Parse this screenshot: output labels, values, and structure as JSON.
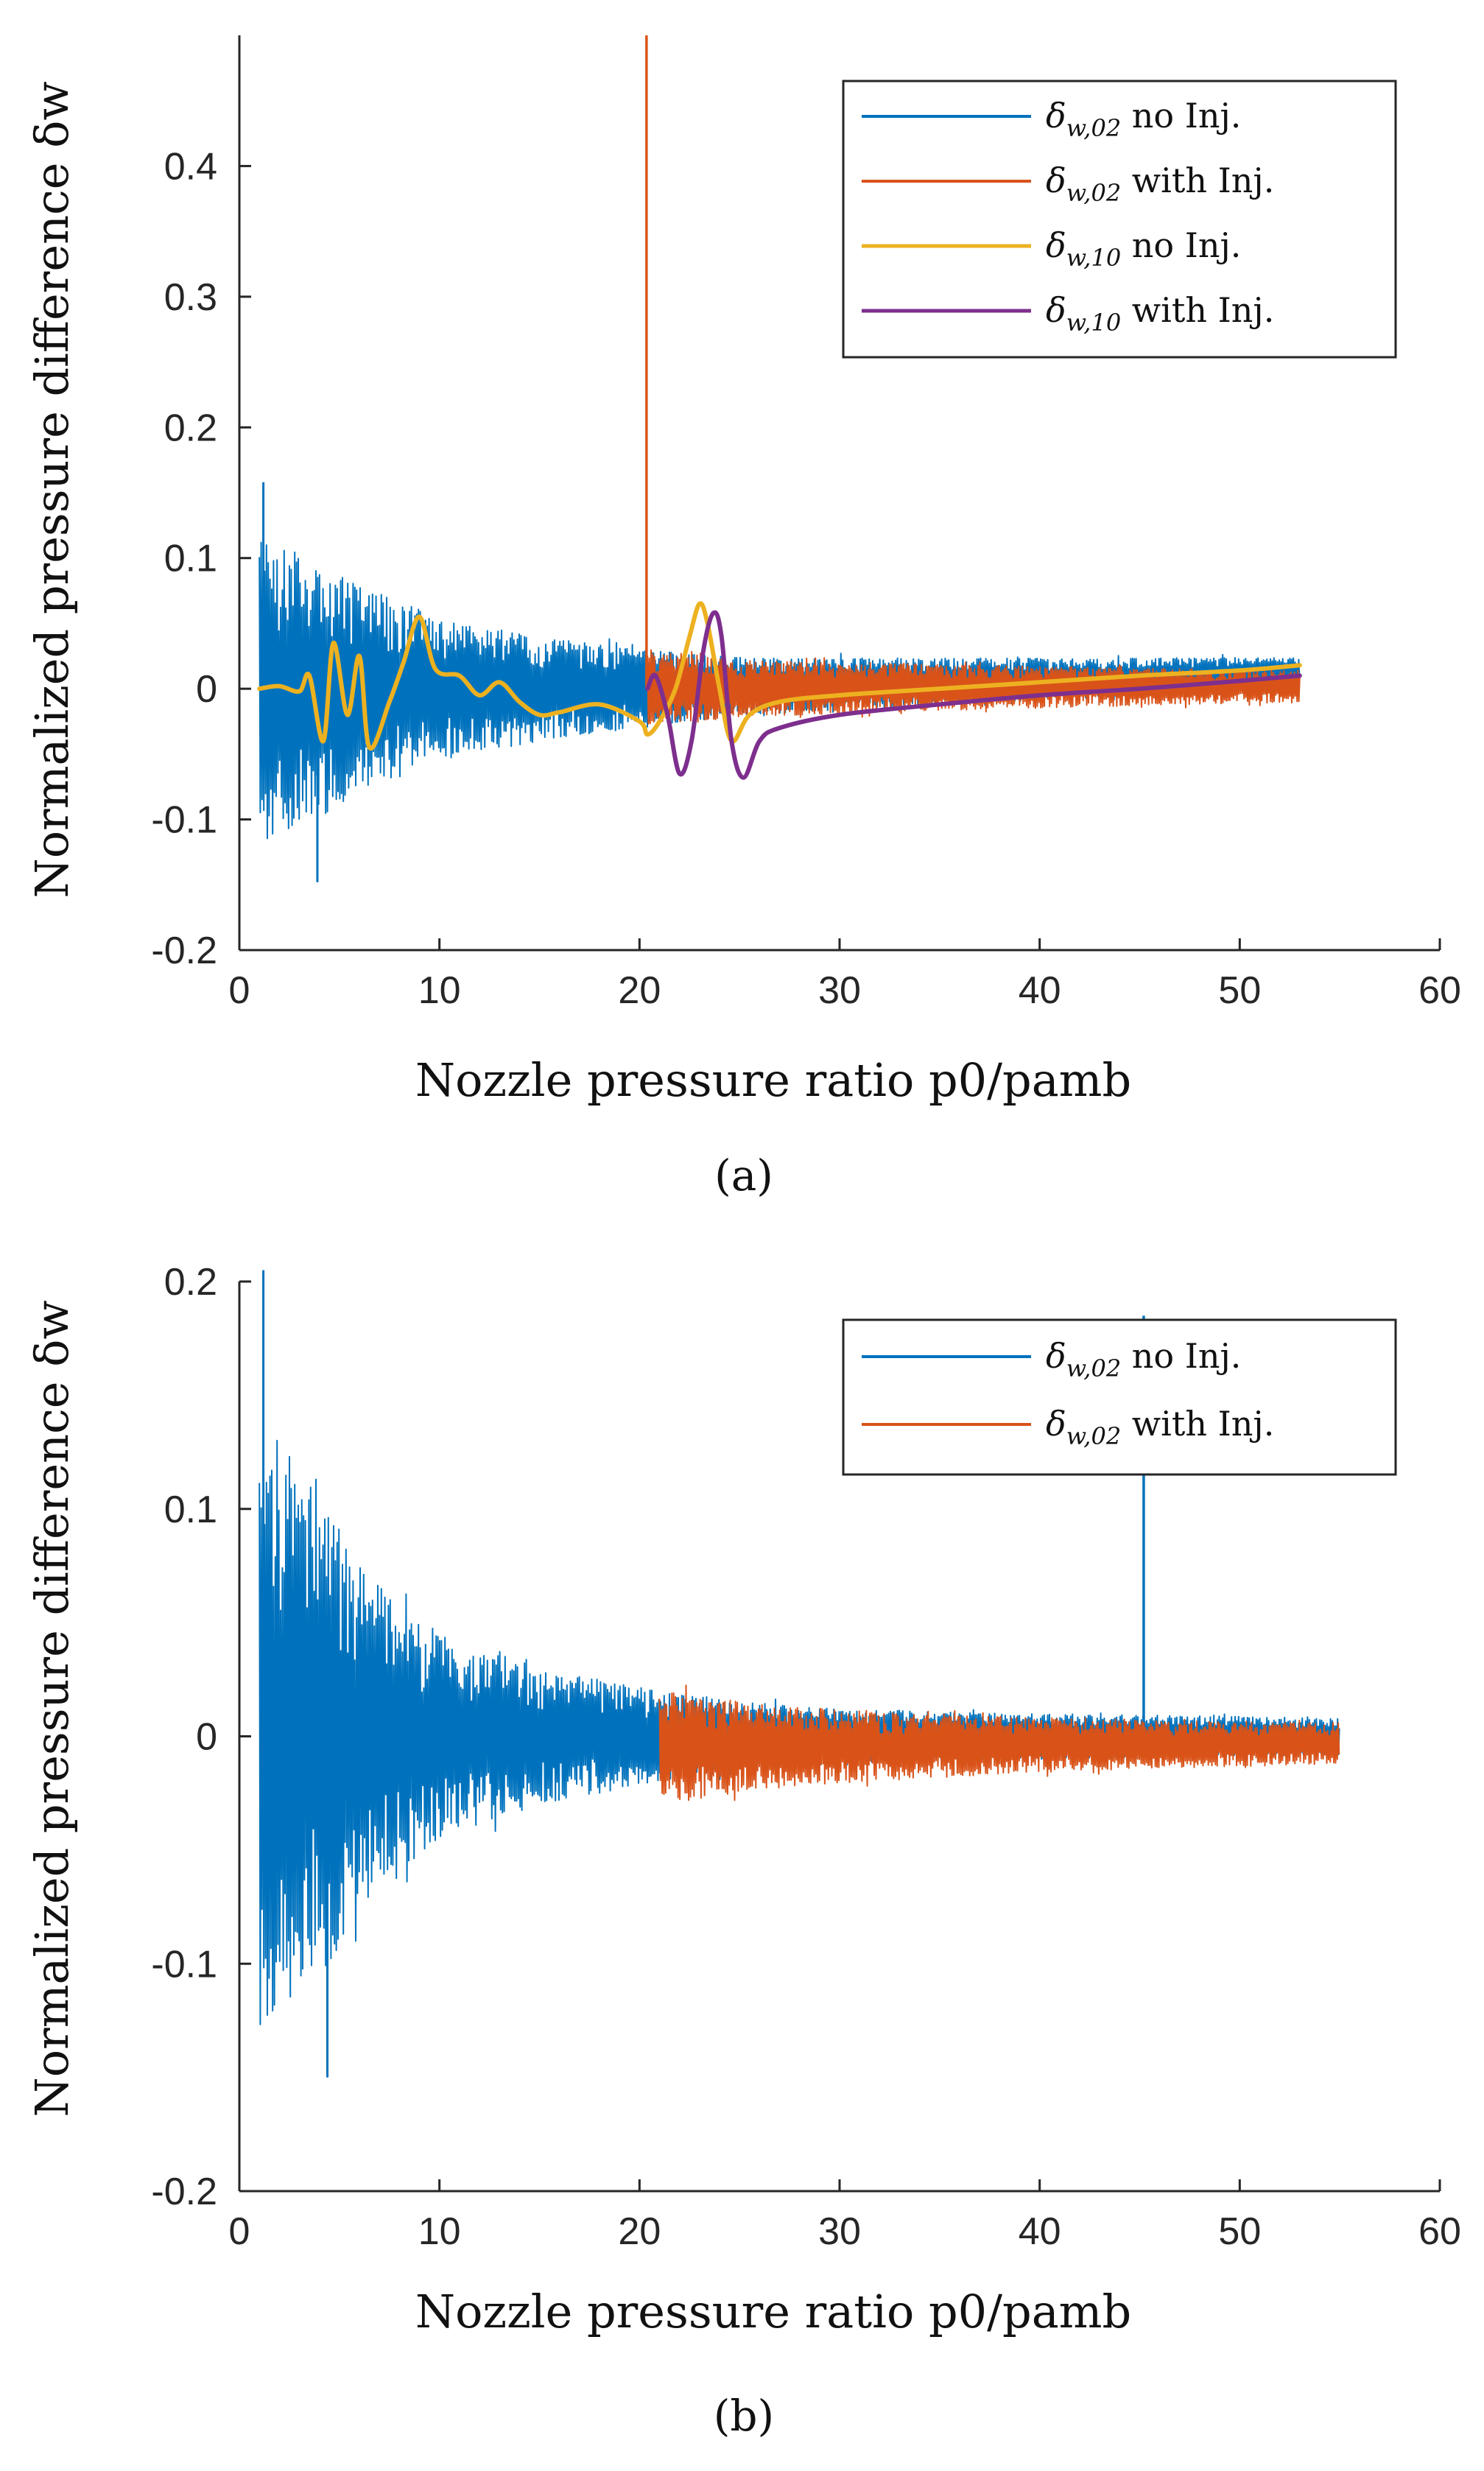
{
  "colors": {
    "blue": "#0072BD",
    "orange": "#D95319",
    "yellow": "#EDB120",
    "purple": "#7E2F8E",
    "axis": "#262626"
  },
  "chart_data": [
    {
      "type": "line",
      "title": "",
      "caption": "(a)",
      "xlabel": "Nozzle pressure ratio p0/pamb",
      "ylabel": "Normalized pressure difference δw",
      "xlim": [
        0,
        60
      ],
      "ylim": [
        -0.2,
        0.5
      ],
      "xticks": [
        0,
        10,
        20,
        30,
        40,
        50,
        60
      ],
      "xtick_labels": [
        "0",
        "10",
        "20",
        "30",
        "40",
        "50",
        "60"
      ],
      "yticks": [
        -0.2,
        -0.1,
        0,
        0.1,
        0.2,
        0.3,
        0.4
      ],
      "ytick_labels": [
        "-0.2",
        "-0.1",
        "0",
        "0.1",
        "0.2",
        "0.3",
        "0.4"
      ],
      "legend_position": "top-right",
      "grid": false,
      "series": [
        {
          "name": "δw,02 no Inj.",
          "name_base": "δ",
          "name_sub": "w,02",
          "name_suffix": " no Inj.",
          "color": "blue",
          "style": "noise",
          "x_range": [
            1,
            53
          ],
          "peak_x": [
            1.2,
            3.5,
            4,
            12
          ],
          "envelope": {
            "x": [
              1,
              2,
              4,
              6,
              10,
              15,
              20,
              25,
              30,
              40,
              53
            ],
            "amplitude": [
              0.12,
              0.11,
              0.1,
              0.08,
              0.055,
              0.04,
              0.03,
              0.022,
              0.02,
              0.016,
              0.012
            ]
          },
          "center": {
            "x": [
              1,
              20,
              53
            ],
            "y": [
              0,
              0,
              0.012
            ]
          },
          "extremes": {
            "max": 0.158,
            "min": -0.148
          }
        },
        {
          "name": "δw,02 with Inj.",
          "name_base": "δ",
          "name_sub": "w,02",
          "name_suffix": " with Inj.",
          "color": "orange",
          "style": "noise",
          "x_range": [
            20.4,
            53
          ],
          "envelope": {
            "x": [
              20.4,
              25,
              30,
              40,
              53
            ],
            "amplitude": [
              0.03,
              0.022,
              0.02,
              0.016,
              0.012
            ]
          },
          "center": {
            "x": [
              20.4,
              53
            ],
            "y": [
              0,
              0.002
            ]
          },
          "spike": {
            "x": 20.35,
            "y": 0.5
          }
        },
        {
          "name": "δw,10 no Inj.",
          "name_base": "δ",
          "name_sub": "w,10",
          "name_suffix": " no Inj.",
          "color": "yellow",
          "style": "smooth",
          "x": [
            1,
            2,
            3,
            3.5,
            4.2,
            4.7,
            5.4,
            6,
            6.5,
            7.5,
            8.2,
            9,
            9.8,
            11,
            12,
            13,
            14,
            15,
            16,
            18,
            20,
            20.4,
            21,
            21.8,
            22.5,
            23,
            23.4,
            24,
            24.6,
            25.5,
            27,
            30,
            35,
            40,
            45,
            50,
            53
          ],
          "y": [
            0,
            0.002,
            -0.002,
            0.01,
            -0.04,
            0.035,
            -0.02,
            0.025,
            -0.045,
            -0.01,
            0.02,
            0.055,
            0.015,
            0.01,
            -0.005,
            0.005,
            -0.01,
            -0.02,
            -0.018,
            -0.012,
            -0.025,
            -0.035,
            -0.025,
            0.0,
            0.04,
            0.065,
            0.05,
            0.0,
            -0.04,
            -0.02,
            -0.01,
            -0.005,
            0.0,
            0.005,
            0.01,
            0.014,
            0.018
          ]
        },
        {
          "name": "δw,10 with Inj.",
          "name_base": "δ",
          "name_sub": "w,10",
          "name_suffix": " with Inj.",
          "color": "purple",
          "style": "smooth",
          "x": [
            20.4,
            20.8,
            21.4,
            22,
            22.6,
            23.2,
            23.7,
            24.1,
            24.6,
            25.2,
            26,
            27,
            30,
            35,
            40,
            45,
            50,
            53
          ],
          "y": [
            0.0,
            0.01,
            -0.02,
            -0.065,
            -0.04,
            0.03,
            0.058,
            0.04,
            -0.04,
            -0.068,
            -0.04,
            -0.03,
            -0.02,
            -0.012,
            -0.005,
            0.0,
            0.006,
            0.01
          ]
        }
      ]
    },
    {
      "type": "line",
      "title": "",
      "caption": "(b)",
      "xlabel": "Nozzle pressure ratio p0/pamb",
      "ylabel": "Normalized pressure difference δw",
      "xlim": [
        0,
        60
      ],
      "ylim": [
        -0.2,
        0.2
      ],
      "xticks": [
        0,
        10,
        20,
        30,
        40,
        50,
        60
      ],
      "xtick_labels": [
        "0",
        "10",
        "20",
        "30",
        "40",
        "50",
        "60"
      ],
      "yticks": [
        -0.2,
        -0.1,
        0,
        0.1,
        0.2
      ],
      "ytick_labels": [
        "-0.2",
        "-0.1",
        "0",
        "0.1",
        "0.2"
      ],
      "legend_position": "top-right",
      "grid": false,
      "series": [
        {
          "name": "δw,02 no Inj.",
          "name_base": "δ",
          "name_sub": "w,02",
          "name_suffix": " no Inj.",
          "color": "blue",
          "style": "noise",
          "x_range": [
            1,
            55
          ],
          "peak_x": [
            1.2,
            4,
            4.5
          ],
          "envelope": {
            "x": [
              1,
              2,
              4,
              6,
              10,
              15,
              21,
              25,
              30,
              40,
              55
            ],
            "amplitude": [
              0.13,
              0.12,
              0.11,
              0.075,
              0.045,
              0.03,
              0.02,
              0.015,
              0.012,
              0.01,
              0.008
            ]
          },
          "center": {
            "x": [
              1,
              55
            ],
            "y": [
              0,
              0
            ]
          },
          "extremes": {
            "max": 0.205,
            "min": -0.15
          },
          "spike": {
            "x": 45.2,
            "y": 0.185
          }
        },
        {
          "name": "δw,02 with Inj.",
          "name_base": "δ",
          "name_sub": "w,02",
          "name_suffix": " with Inj.",
          "color": "orange",
          "style": "noise",
          "x_range": [
            21,
            55
          ],
          "envelope": {
            "x": [
              21,
              25,
              30,
              40,
              55
            ],
            "amplitude": [
              0.025,
              0.02,
              0.016,
              0.012,
              0.009
            ]
          },
          "center": {
            "x": [
              21,
              55
            ],
            "y": [
              -0.005,
              -0.003
            ]
          }
        }
      ]
    }
  ]
}
